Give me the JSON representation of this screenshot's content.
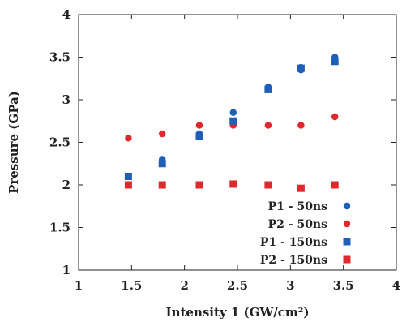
{
  "chart_data": {
    "type": "scatter",
    "xlabel": "Intensity 1 (GW/cm²)",
    "ylabel": "Pressure (GPa)",
    "xlim": [
      1,
      4
    ],
    "ylim": [
      1,
      4
    ],
    "xticks": [
      "1",
      "1.5",
      "2",
      "2.5",
      "3",
      "3.5",
      "4"
    ],
    "yticks": [
      "1",
      "1.5",
      "2",
      "2.5",
      "3",
      "3.5",
      "4"
    ],
    "legend_position": "bottom-right",
    "grid": false,
    "series": [
      {
        "name": "P1 - 50ns",
        "marker": "circle",
        "color": "#1f5fb8",
        "x": [
          1.47,
          1.79,
          1.79,
          2.14,
          2.14,
          2.46,
          2.46,
          2.79,
          2.79,
          3.1,
          3.1,
          3.42,
          3.42
        ],
        "y": [
          2.1,
          2.3,
          2.25,
          2.6,
          2.57,
          2.85,
          2.75,
          3.15,
          3.12,
          3.38,
          3.35,
          3.5,
          3.47
        ]
      },
      {
        "name": "P2 - 50ns",
        "marker": "circle",
        "color": "#e0282e",
        "x": [
          1.47,
          1.79,
          2.14,
          2.46,
          2.79,
          3.1,
          3.42
        ],
        "y": [
          2.55,
          2.6,
          2.7,
          2.7,
          2.7,
          2.7,
          2.8
        ]
      },
      {
        "name": "P1 - 150ns",
        "marker": "square",
        "color": "#1f5fb8",
        "x": [
          1.47,
          1.79,
          2.14,
          2.46,
          2.79,
          3.1,
          3.42
        ],
        "y": [
          2.1,
          2.25,
          2.57,
          2.75,
          3.12,
          3.37,
          3.45
        ]
      },
      {
        "name": "P2 - 150ns",
        "marker": "square",
        "color": "#e0282e",
        "x": [
          1.47,
          1.79,
          2.14,
          2.46,
          2.79,
          3.1,
          3.42
        ],
        "y": [
          2.0,
          2.0,
          2.0,
          2.01,
          2.0,
          1.96,
          2.0
        ]
      }
    ]
  }
}
